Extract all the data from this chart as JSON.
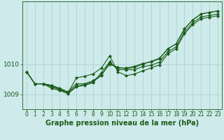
{
  "title": "Graphe pression niveau de la mer (hPa)",
  "background_color": "#ceeaea",
  "grid_color": "#aacece",
  "line_color": "#1a5c1a",
  "xlim": [
    -0.5,
    23.5
  ],
  "ylim": [
    1008.5,
    1012.1
  ],
  "yticks": [
    1009,
    1010
  ],
  "xticks": [
    0,
    1,
    2,
    3,
    4,
    5,
    6,
    7,
    8,
    9,
    10,
    11,
    12,
    13,
    14,
    15,
    16,
    17,
    18,
    19,
    20,
    21,
    22,
    23
  ],
  "series": [
    [
      1009.75,
      1009.35,
      1009.35,
      1009.25,
      1009.15,
      1009.05,
      1009.28,
      1009.32,
      1009.42,
      1009.62,
      1010.05,
      1009.87,
      1009.88,
      1009.93,
      1010.03,
      1010.08,
      1010.18,
      1010.52,
      1010.68,
      1011.18,
      1011.48,
      1011.68,
      1011.73,
      1011.78
    ],
    [
      1009.75,
      1009.35,
      1009.35,
      1009.2,
      1009.12,
      1009.02,
      1009.25,
      1009.3,
      1009.38,
      1009.72,
      1010.08,
      1009.82,
      1009.82,
      1009.82,
      1009.92,
      1009.97,
      1010.07,
      1010.42,
      1010.58,
      1011.08,
      1011.38,
      1011.58,
      1011.63,
      1011.68
    ],
    [
      1009.75,
      1009.35,
      1009.35,
      1009.3,
      1009.2,
      1009.08,
      1009.35,
      1009.35,
      1009.45,
      1009.65,
      1010.0,
      1009.9,
      1009.85,
      1009.9,
      1010.0,
      1010.1,
      1010.2,
      1010.52,
      1010.68,
      1011.18,
      1011.48,
      1011.68,
      1011.73,
      1011.78
    ],
    [
      1009.75,
      1009.35,
      1009.35,
      1009.28,
      1009.17,
      1009.05,
      1009.55,
      1009.6,
      1009.68,
      1009.87,
      1010.28,
      1009.75,
      1009.62,
      1009.68,
      1009.78,
      1009.88,
      1009.98,
      1010.35,
      1010.52,
      1011.02,
      1011.32,
      1011.52,
      1011.57,
      1011.62
    ]
  ],
  "marker": "D",
  "marker_size": 2.0,
  "linewidth": 0.8,
  "title_fontsize": 7.0,
  "tick_fontsize": 5.5,
  "ylabel_fontsize": 6.5
}
